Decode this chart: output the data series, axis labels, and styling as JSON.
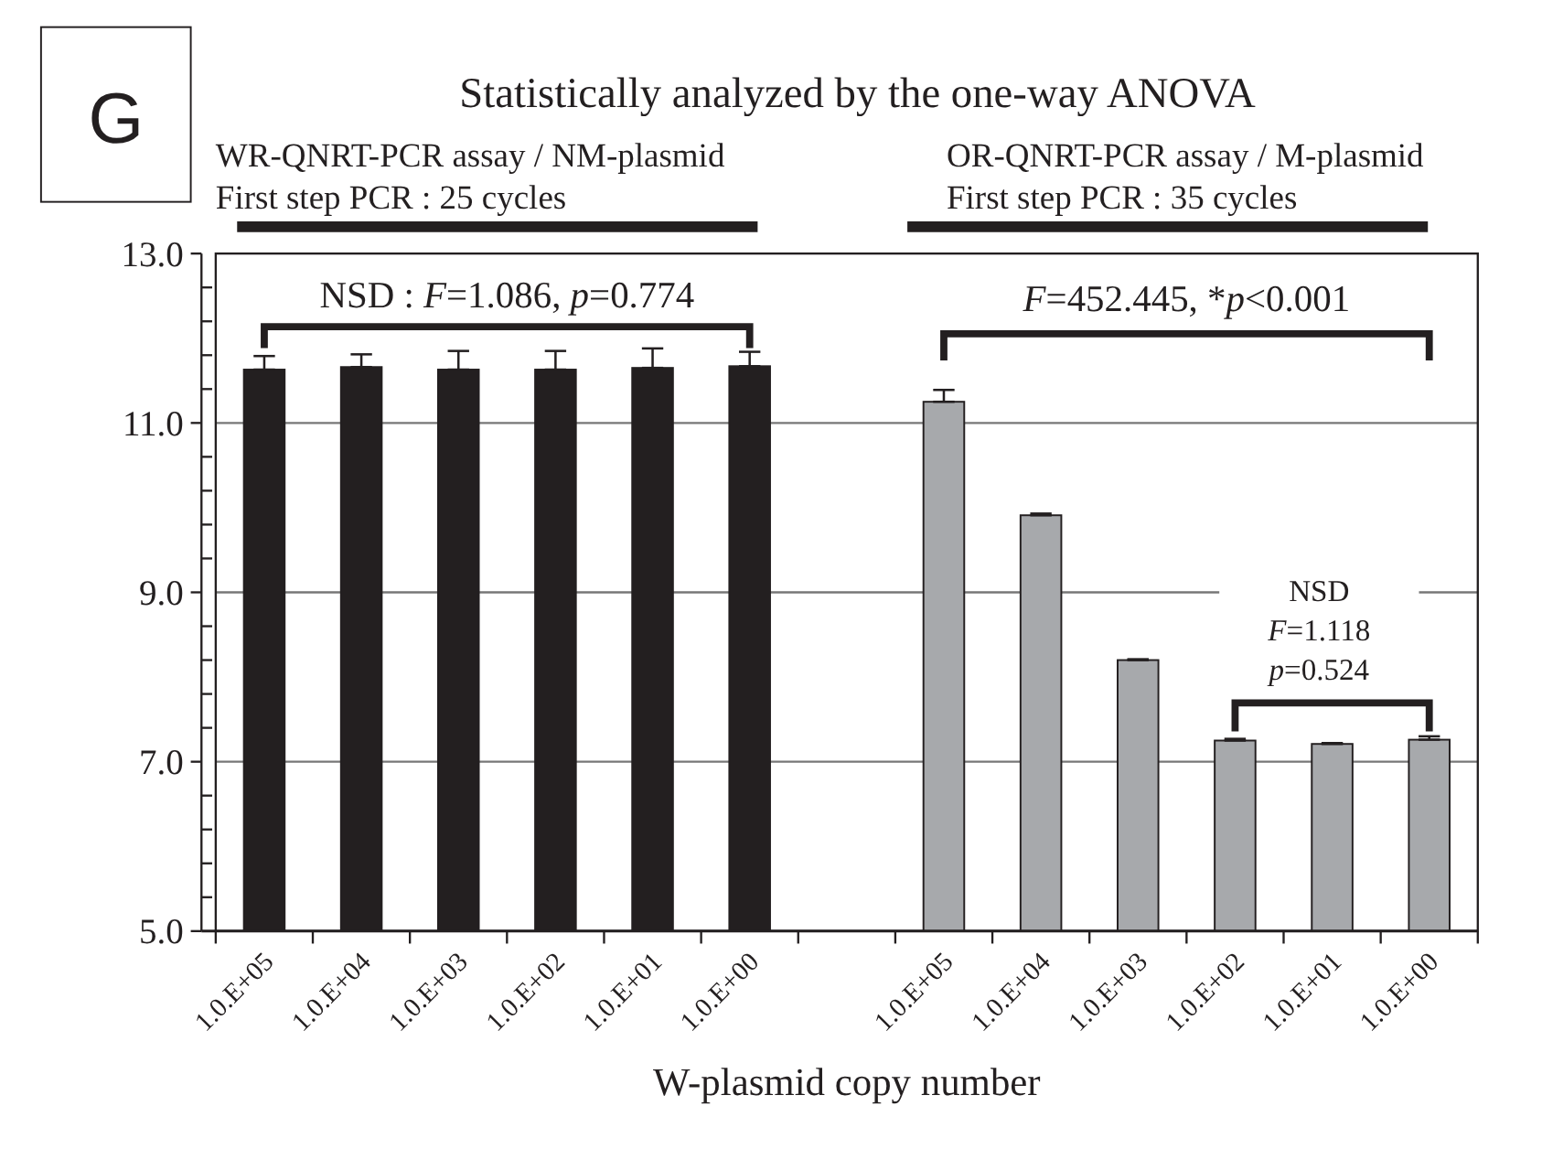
{
  "chart_data": {
    "type": "bar",
    "title": "Statistically analyzed by the one-way ANOVA",
    "xlabel": "W-plasmid copy number",
    "categories": [
      "1.0.E+05",
      "1.0.E+04",
      "1.0.E+03",
      "1.0.E+02",
      "1.0.E+01",
      "1.0.E+00",
      null,
      "1.0.E+05",
      "1.0.E+04",
      "1.0.E+03",
      "1.0.E+02",
      "1.0.E+01",
      "1.0.E+00"
    ],
    "values": [
      11.63,
      11.66,
      11.63,
      11.63,
      11.65,
      11.67,
      null,
      11.25,
      9.91,
      8.2,
      7.25,
      7.21,
      7.26
    ],
    "colors": [
      "#231f20",
      "#231f20",
      "#231f20",
      "#231f20",
      "#231f20",
      "#231f20",
      null,
      "#a7a9ac",
      "#a7a9ac",
      "#a7a9ac",
      "#a7a9ac",
      "#a7a9ac",
      "#a7a9ac"
    ],
    "errors": [
      [
        11.63,
        11.79
      ],
      [
        11.66,
        11.81
      ],
      [
        11.63,
        11.85
      ],
      [
        11.63,
        11.85
      ],
      [
        11.65,
        11.88
      ],
      [
        11.67,
        11.84
      ],
      null,
      [
        11.25,
        11.39
      ],
      [
        9.91,
        9.93
      ],
      [
        8.2,
        8.21
      ],
      [
        7.25,
        7.27
      ],
      [
        7.21,
        7.22
      ],
      [
        7.26,
        7.3
      ]
    ],
    "ylim": [
      5,
      13
    ],
    "yticks": [
      {
        "value": 5,
        "label": "5.0"
      },
      {
        "value": 5.4,
        "label": null
      },
      {
        "value": 5.8,
        "label": null
      },
      {
        "value": 6.2,
        "label": null
      },
      {
        "value": 6.6,
        "label": null
      },
      {
        "value": 7,
        "label": "7.0"
      },
      {
        "value": 7.4,
        "label": null
      },
      {
        "value": 7.8,
        "label": null
      },
      {
        "value": 8.2,
        "label": null
      },
      {
        "value": 8.6,
        "label": null
      },
      {
        "value": 9,
        "label": "9.0"
      },
      {
        "value": 9.4,
        "label": null
      },
      {
        "value": 9.8,
        "label": null
      },
      {
        "value": 10.2,
        "label": null
      },
      {
        "value": 10.6,
        "label": null
      },
      {
        "value": 11,
        "label": "11.0"
      },
      {
        "value": 11.4,
        "label": null
      },
      {
        "value": 11.8,
        "label": null
      },
      {
        "value": 12.2,
        "label": null
      },
      {
        "value": 12.6,
        "label": null
      },
      {
        "value": 13,
        "label": "13.0"
      }
    ],
    "grid": "y",
    "annotations": [
      "G",
      "WR-QNRT-PCR assay / NM-plasmid",
      "First step PCR : 25 cycles",
      "OR-QNRT-PCR assay / M-plasmid",
      "First step PCR : 35 cycles",
      "NSD : F=1.086, p=0.774",
      "F=452.445, *p<0.001",
      "NSD",
      "F=1.118",
      "p=0.524"
    ]
  }
}
